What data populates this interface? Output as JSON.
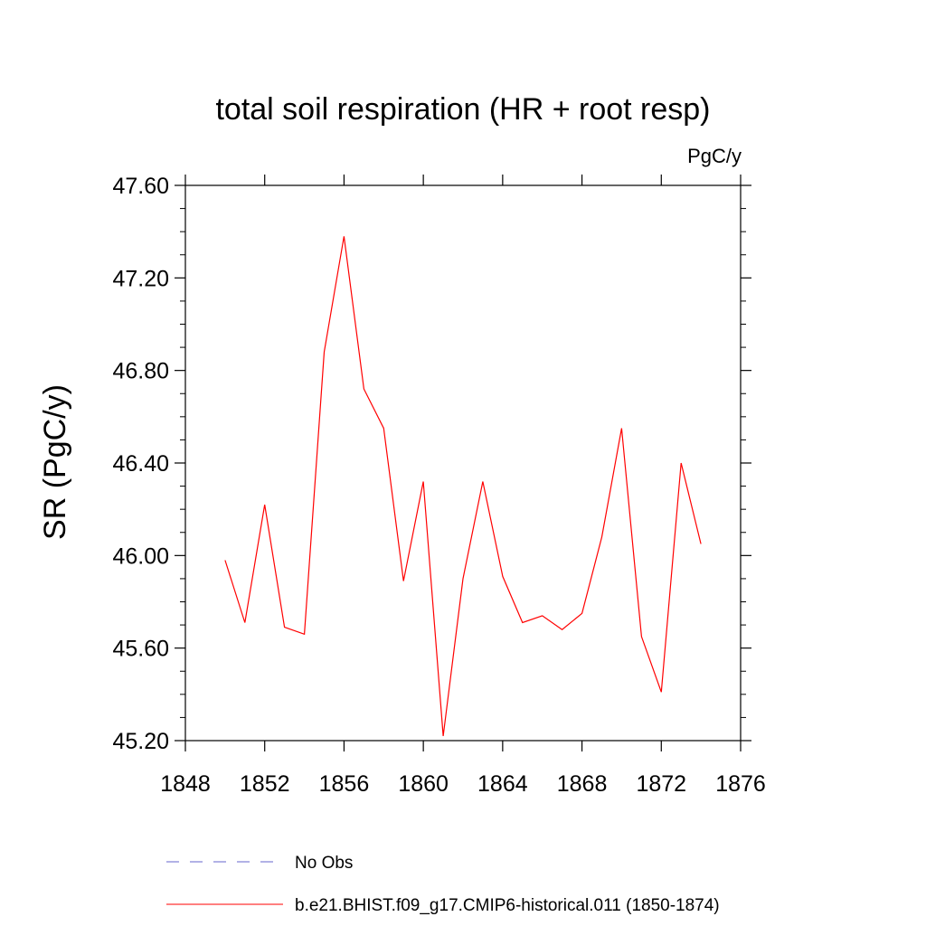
{
  "chart_data": {
    "type": "line",
    "title": "total soil respiration (HR + root resp)",
    "units_label": "PgC/y",
    "xlabel": "",
    "ylabel": "SR  (PgC/y)",
    "xlim": [
      1848,
      1876
    ],
    "ylim": [
      45.2,
      47.6
    ],
    "x_ticks": [
      1848,
      1852,
      1856,
      1860,
      1864,
      1868,
      1872,
      1876
    ],
    "x_tick_labels": [
      "1848",
      "1852",
      "1856",
      "1860",
      "1864",
      "1868",
      "1872",
      "1876"
    ],
    "y_ticks": [
      45.2,
      45.6,
      46.0,
      46.4,
      46.8,
      47.2,
      47.6
    ],
    "y_tick_labels": [
      "45.20",
      "45.60",
      "46.00",
      "46.40",
      "46.80",
      "47.20",
      "47.60"
    ],
    "grid": false,
    "legend_position": "bottom",
    "series": [
      {
        "name": "No Obs",
        "color": "#6666cc",
        "dash": "dashed",
        "x": [],
        "values": []
      },
      {
        "name": "b.e21.BHIST.f09_g17.CMIP6-historical.011 (1850-1874)",
        "color": "#ff0000",
        "dash": "solid",
        "x": [
          1850,
          1851,
          1852,
          1853,
          1854,
          1855,
          1856,
          1857,
          1858,
          1859,
          1860,
          1861,
          1862,
          1863,
          1864,
          1865,
          1866,
          1867,
          1868,
          1869,
          1870,
          1871,
          1872,
          1873,
          1874
        ],
        "values": [
          45.98,
          45.71,
          46.22,
          45.69,
          45.66,
          46.88,
          47.38,
          46.72,
          46.55,
          45.89,
          46.32,
          45.22,
          45.9,
          46.32,
          45.91,
          45.71,
          45.74,
          45.68,
          45.75,
          46.08,
          46.55,
          45.65,
          45.41,
          46.4,
          46.05
        ]
      }
    ]
  }
}
